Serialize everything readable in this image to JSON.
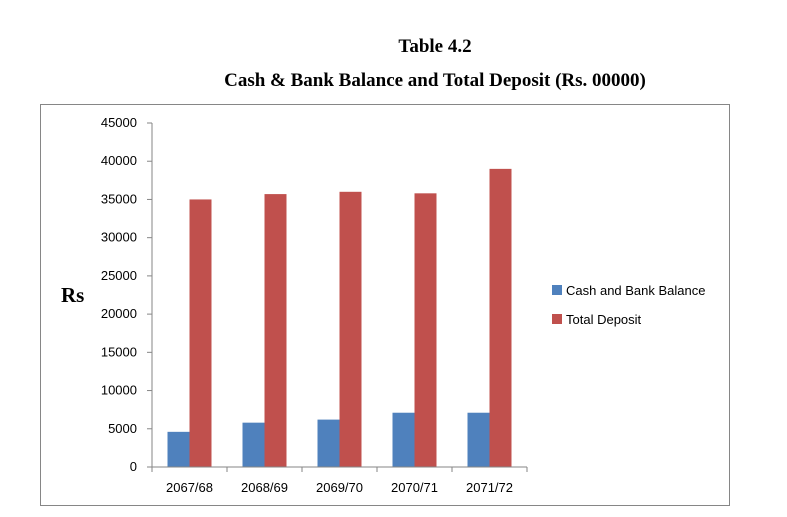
{
  "caption": {
    "table_number": "Table 4.2",
    "title": "Cash & Bank Balance and Total Deposit (Rs. 00000)"
  },
  "chart_data": {
    "type": "bar",
    "title": "Cash & Bank Balance and Total Deposit (Rs. 00000)",
    "xlabel": "",
    "ylabel": "Rs",
    "ylim": [
      0,
      45000
    ],
    "yticks": [
      0,
      5000,
      10000,
      15000,
      20000,
      25000,
      30000,
      35000,
      40000,
      45000
    ],
    "grid": false,
    "legend_position": "right",
    "categories": [
      "2067/68",
      "2068/69",
      "2069/70",
      "2070/71",
      "2071/72"
    ],
    "series": [
      {
        "name": "Cash and Bank Balance",
        "color": "#4f81bd",
        "values": [
          4600,
          5800,
          6200,
          7100,
          7100
        ]
      },
      {
        "name": "Total Deposit",
        "color": "#c0504d",
        "values": [
          35000,
          35700,
          36000,
          35800,
          39000
        ]
      }
    ]
  }
}
